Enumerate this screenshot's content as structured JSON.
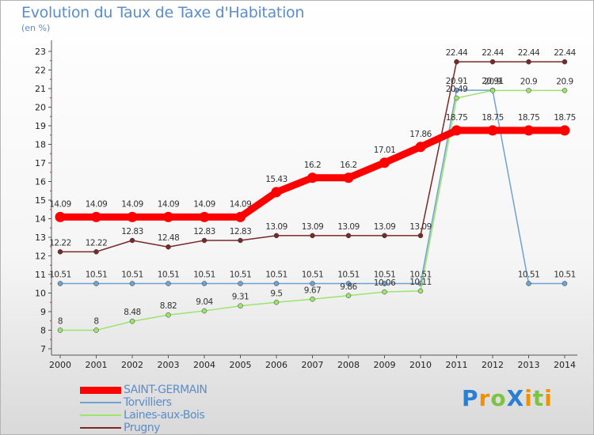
{
  "title": "Evolution du Taux de Taxe d'Habitation",
  "subtitle": "(en %)",
  "logo": "ProXiti",
  "chart_data": {
    "type": "line",
    "x": [
      "2000",
      "2001",
      "2002",
      "2003",
      "2004",
      "2005",
      "2006",
      "2007",
      "2008",
      "2009",
      "2010",
      "2011",
      "2012",
      "2013",
      "2014"
    ],
    "ylim": [
      7,
      23
    ],
    "yticks": [
      "7",
      "8",
      "9",
      "10",
      "11",
      "12",
      "13",
      "14",
      "15",
      "16",
      "17",
      "18",
      "19",
      "20",
      "21",
      "22",
      "23"
    ],
    "grid": false,
    "legend_position": "bottom-left",
    "series": [
      {
        "name": "SAINT-GERMAIN",
        "color": "#ff0000",
        "values": [
          14.09,
          14.09,
          14.09,
          14.09,
          14.09,
          14.09,
          15.43,
          16.2,
          16.2,
          17.01,
          17.86,
          18.75,
          18.75,
          18.75,
          18.75
        ],
        "labels": [
          "14.09",
          "14.09",
          "14.09",
          "14.09",
          "14.09",
          "14.09",
          "15.43",
          "16.2",
          "16.2",
          "17.01",
          "17.86",
          "18.75",
          "18.75",
          "18.75",
          "18.75"
        ]
      },
      {
        "name": "Torvilliers",
        "color": "#6fa1d1",
        "values": [
          10.51,
          10.51,
          10.51,
          10.51,
          10.51,
          10.51,
          10.51,
          10.51,
          10.51,
          10.51,
          10.51,
          20.91,
          20.91,
          10.51,
          10.51
        ],
        "labels": [
          "10.51",
          "10.51",
          "10.51",
          "10.51",
          "10.51",
          "10.51",
          "10.51",
          "10.51",
          "10.51",
          "10.51",
          "10.51",
          "20.91",
          "20.91",
          "10.51",
          "10.51"
        ]
      },
      {
        "name": "Laines-aux-Bois",
        "color": "#9ce46e",
        "values": [
          8,
          8,
          8.48,
          8.82,
          9.04,
          9.31,
          9.5,
          9.67,
          9.86,
          10.06,
          10.11,
          20.49,
          20.9,
          20.9,
          20.9
        ],
        "labels": [
          "8",
          "8",
          "8.48",
          "8.82",
          "9.04",
          "9.31",
          "9.5",
          "9.67",
          "9.86",
          "10.06",
          "10.11",
          "20.49",
          "20.9",
          "20.9",
          "20.9"
        ]
      },
      {
        "name": "Prugny",
        "color": "#7a2828",
        "values": [
          12.22,
          12.22,
          12.83,
          12.48,
          12.83,
          12.83,
          13.09,
          13.09,
          13.09,
          13.09,
          13.09,
          22.44,
          22.44,
          22.44,
          22.44
        ],
        "labels": [
          "12.22",
          "12.22",
          "12.83",
          "12.48",
          "12.83",
          "12.83",
          "13.09",
          "13.09",
          "13.09",
          "13.09",
          "13.09",
          "22.44",
          "22.44",
          "22.44",
          "22.44"
        ]
      }
    ]
  }
}
